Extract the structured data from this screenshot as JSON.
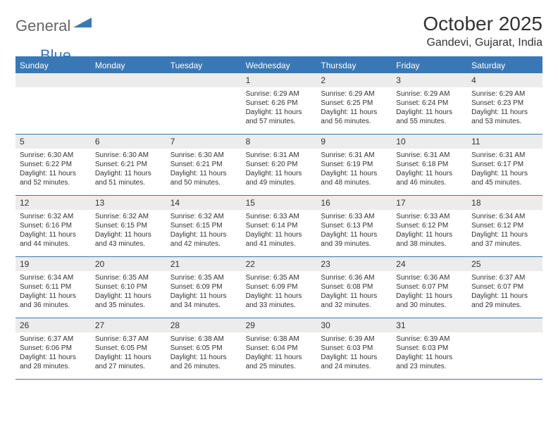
{
  "logo": {
    "part1": "General",
    "part2": "Blue"
  },
  "title": "October 2025",
  "location": "Gandevi, Gujarat, India",
  "colors": {
    "header_bar": "#3a78b5",
    "daynum_bg": "#ececec",
    "text": "#333333",
    "logo_gray": "#666666",
    "logo_blue": "#3a78b5",
    "bg": "#ffffff"
  },
  "daysOfWeek": [
    "Sunday",
    "Monday",
    "Tuesday",
    "Wednesday",
    "Thursday",
    "Friday",
    "Saturday"
  ],
  "layout": {
    "cols": 7,
    "rows": 5,
    "first_day_col": 3
  },
  "weeks": [
    [
      null,
      null,
      null,
      {
        "n": "1",
        "sr": "6:29 AM",
        "ss": "6:26 PM",
        "dl": "11 hours and 57 minutes."
      },
      {
        "n": "2",
        "sr": "6:29 AM",
        "ss": "6:25 PM",
        "dl": "11 hours and 56 minutes."
      },
      {
        "n": "3",
        "sr": "6:29 AM",
        "ss": "6:24 PM",
        "dl": "11 hours and 55 minutes."
      },
      {
        "n": "4",
        "sr": "6:29 AM",
        "ss": "6:23 PM",
        "dl": "11 hours and 53 minutes."
      }
    ],
    [
      {
        "n": "5",
        "sr": "6:30 AM",
        "ss": "6:22 PM",
        "dl": "11 hours and 52 minutes."
      },
      {
        "n": "6",
        "sr": "6:30 AM",
        "ss": "6:21 PM",
        "dl": "11 hours and 51 minutes."
      },
      {
        "n": "7",
        "sr": "6:30 AM",
        "ss": "6:21 PM",
        "dl": "11 hours and 50 minutes."
      },
      {
        "n": "8",
        "sr": "6:31 AM",
        "ss": "6:20 PM",
        "dl": "11 hours and 49 minutes."
      },
      {
        "n": "9",
        "sr": "6:31 AM",
        "ss": "6:19 PM",
        "dl": "11 hours and 48 minutes."
      },
      {
        "n": "10",
        "sr": "6:31 AM",
        "ss": "6:18 PM",
        "dl": "11 hours and 46 minutes."
      },
      {
        "n": "11",
        "sr": "6:31 AM",
        "ss": "6:17 PM",
        "dl": "11 hours and 45 minutes."
      }
    ],
    [
      {
        "n": "12",
        "sr": "6:32 AM",
        "ss": "6:16 PM",
        "dl": "11 hours and 44 minutes."
      },
      {
        "n": "13",
        "sr": "6:32 AM",
        "ss": "6:15 PM",
        "dl": "11 hours and 43 minutes."
      },
      {
        "n": "14",
        "sr": "6:32 AM",
        "ss": "6:15 PM",
        "dl": "11 hours and 42 minutes."
      },
      {
        "n": "15",
        "sr": "6:33 AM",
        "ss": "6:14 PM",
        "dl": "11 hours and 41 minutes."
      },
      {
        "n": "16",
        "sr": "6:33 AM",
        "ss": "6:13 PM",
        "dl": "11 hours and 39 minutes."
      },
      {
        "n": "17",
        "sr": "6:33 AM",
        "ss": "6:12 PM",
        "dl": "11 hours and 38 minutes."
      },
      {
        "n": "18",
        "sr": "6:34 AM",
        "ss": "6:12 PM",
        "dl": "11 hours and 37 minutes."
      }
    ],
    [
      {
        "n": "19",
        "sr": "6:34 AM",
        "ss": "6:11 PM",
        "dl": "11 hours and 36 minutes."
      },
      {
        "n": "20",
        "sr": "6:35 AM",
        "ss": "6:10 PM",
        "dl": "11 hours and 35 minutes."
      },
      {
        "n": "21",
        "sr": "6:35 AM",
        "ss": "6:09 PM",
        "dl": "11 hours and 34 minutes."
      },
      {
        "n": "22",
        "sr": "6:35 AM",
        "ss": "6:09 PM",
        "dl": "11 hours and 33 minutes."
      },
      {
        "n": "23",
        "sr": "6:36 AM",
        "ss": "6:08 PM",
        "dl": "11 hours and 32 minutes."
      },
      {
        "n": "24",
        "sr": "6:36 AM",
        "ss": "6:07 PM",
        "dl": "11 hours and 30 minutes."
      },
      {
        "n": "25",
        "sr": "6:37 AM",
        "ss": "6:07 PM",
        "dl": "11 hours and 29 minutes."
      }
    ],
    [
      {
        "n": "26",
        "sr": "6:37 AM",
        "ss": "6:06 PM",
        "dl": "11 hours and 28 minutes."
      },
      {
        "n": "27",
        "sr": "6:37 AM",
        "ss": "6:05 PM",
        "dl": "11 hours and 27 minutes."
      },
      {
        "n": "28",
        "sr": "6:38 AM",
        "ss": "6:05 PM",
        "dl": "11 hours and 26 minutes."
      },
      {
        "n": "29",
        "sr": "6:38 AM",
        "ss": "6:04 PM",
        "dl": "11 hours and 25 minutes."
      },
      {
        "n": "30",
        "sr": "6:39 AM",
        "ss": "6:03 PM",
        "dl": "11 hours and 24 minutes."
      },
      {
        "n": "31",
        "sr": "6:39 AM",
        "ss": "6:03 PM",
        "dl": "11 hours and 23 minutes."
      },
      null
    ]
  ],
  "labels": {
    "sunrise": "Sunrise:",
    "sunset": "Sunset:",
    "daylight": "Daylight:"
  }
}
